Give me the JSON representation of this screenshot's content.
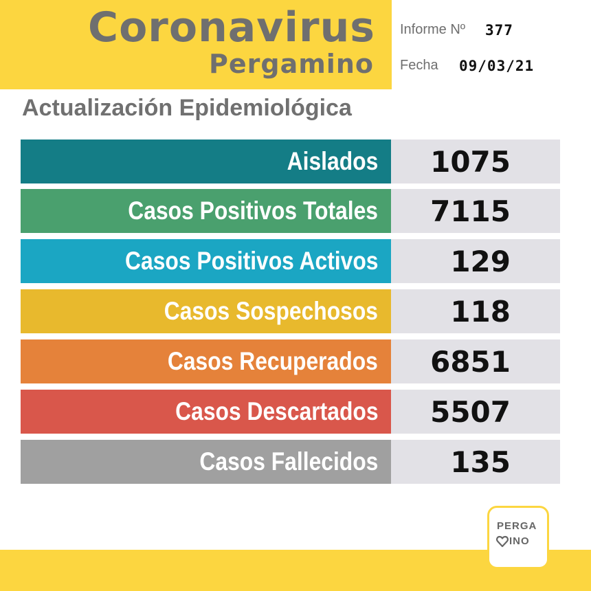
{
  "header": {
    "title": "Coronavirus",
    "subtitle": "Pergamino",
    "informe_label": "Informe Nº",
    "informe_value": "377",
    "fecha_label": "Fecha",
    "fecha_value": "09/03/21"
  },
  "section_title": "Actualización Epidemiológica",
  "rows": [
    {
      "label": "Aislados",
      "value": "1075",
      "color": "#147d86"
    },
    {
      "label": "Casos Positivos Totales",
      "value": "7115",
      "color": "#4aa06e"
    },
    {
      "label": "Casos Positivos Activos",
      "value": "129",
      "color": "#1ba6c3"
    },
    {
      "label": "Casos Sospechosos",
      "value": "118",
      "color": "#e8b92d"
    },
    {
      "label": "Casos Recuperados",
      "value": "6851",
      "color": "#e5823a"
    },
    {
      "label": "Casos Descartados",
      "value": "5507",
      "color": "#d9574b"
    },
    {
      "label": "Casos Fallecidos",
      "value": "135",
      "color": "#a0a0a0"
    }
  ],
  "logo": {
    "line1": "PERGA",
    "line2": "INO"
  },
  "colors": {
    "brand_yellow": "#fcd640",
    "value_bg": "#e2e1e6",
    "title_gray": "#6f6f6f"
  }
}
